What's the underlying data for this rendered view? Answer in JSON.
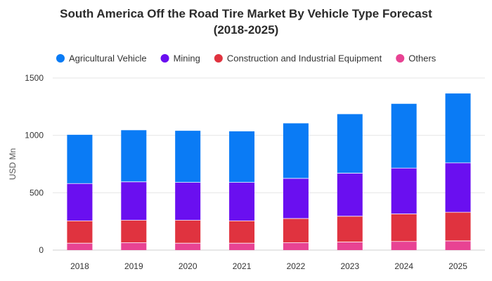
{
  "chart_data": {
    "type": "bar",
    "stacked": true,
    "title_line1": "South America Off the Road Tire Market By Vehicle Type Forecast",
    "title_line2": "(2018-2025)",
    "xlabel": "",
    "ylabel": "USD Mn",
    "ylim": [
      0,
      1500
    ],
    "yticks": [
      0,
      500,
      1000,
      1500
    ],
    "grid": true,
    "legend_position": "top-left",
    "categories": [
      "2018",
      "2019",
      "2020",
      "2021",
      "2022",
      "2023",
      "2024",
      "2025"
    ],
    "series": [
      {
        "name": "Others",
        "color": "#e84393",
        "values": [
          60,
          65,
          60,
          60,
          65,
          70,
          75,
          80
        ]
      },
      {
        "name": "Construction and Industrial Equipment",
        "color": "#e0333f",
        "values": [
          195,
          195,
          200,
          195,
          210,
          225,
          240,
          250
        ]
      },
      {
        "name": "Mining",
        "color": "#6a0ff0",
        "values": [
          325,
          335,
          330,
          335,
          350,
          375,
          400,
          430
        ]
      },
      {
        "name": "Agricultural Vehicle",
        "color": "#0a7bf5",
        "values": [
          425,
          450,
          450,
          445,
          480,
          515,
          560,
          605
        ]
      }
    ],
    "legend_order": [
      "Agricultural Vehicle",
      "Mining",
      "Construction and Industrial Equipment",
      "Others"
    ]
  }
}
